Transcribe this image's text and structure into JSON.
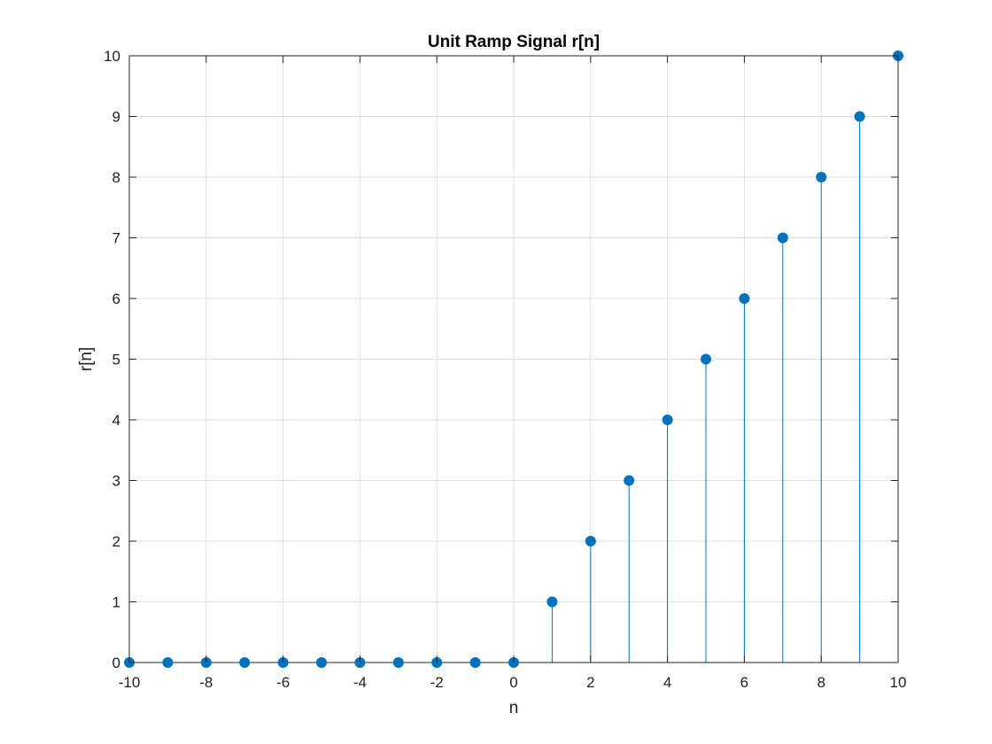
{
  "chart_data": {
    "type": "stem",
    "title": "Unit Ramp Signal r[n]",
    "xlabel": "n",
    "ylabel": "r[n]",
    "xlim": [
      -10,
      10
    ],
    "ylim": [
      0,
      10
    ],
    "xticks": [
      -10,
      -8,
      -6,
      -4,
      -2,
      0,
      2,
      4,
      6,
      8,
      10
    ],
    "yticks": [
      0,
      1,
      2,
      3,
      4,
      5,
      6,
      7,
      8,
      9,
      10
    ],
    "x_tick_labels": [
      "-10",
      "-8",
      "-6",
      "-4",
      "-2",
      "0",
      "2",
      "4",
      "6",
      "8",
      "10"
    ],
    "y_tick_labels": [
      "0",
      "1",
      "2",
      "3",
      "4",
      "5",
      "6",
      "7",
      "8",
      "9",
      "10"
    ],
    "grid": true,
    "series": [
      {
        "x": [
          -10,
          -9,
          -8,
          -7,
          -6,
          -5,
          -4,
          -3,
          -2,
          -1,
          0,
          1,
          2,
          3,
          4,
          5,
          6,
          7,
          8,
          9,
          10
        ],
        "y": [
          0,
          0,
          0,
          0,
          0,
          0,
          0,
          0,
          0,
          0,
          0,
          1,
          2,
          3,
          4,
          5,
          6,
          7,
          8,
          9,
          10
        ],
        "color": "#0072BD"
      }
    ]
  },
  "colors": {
    "stem": "#0072BD",
    "grid": "#dfdfdf",
    "axis": "#262626"
  }
}
